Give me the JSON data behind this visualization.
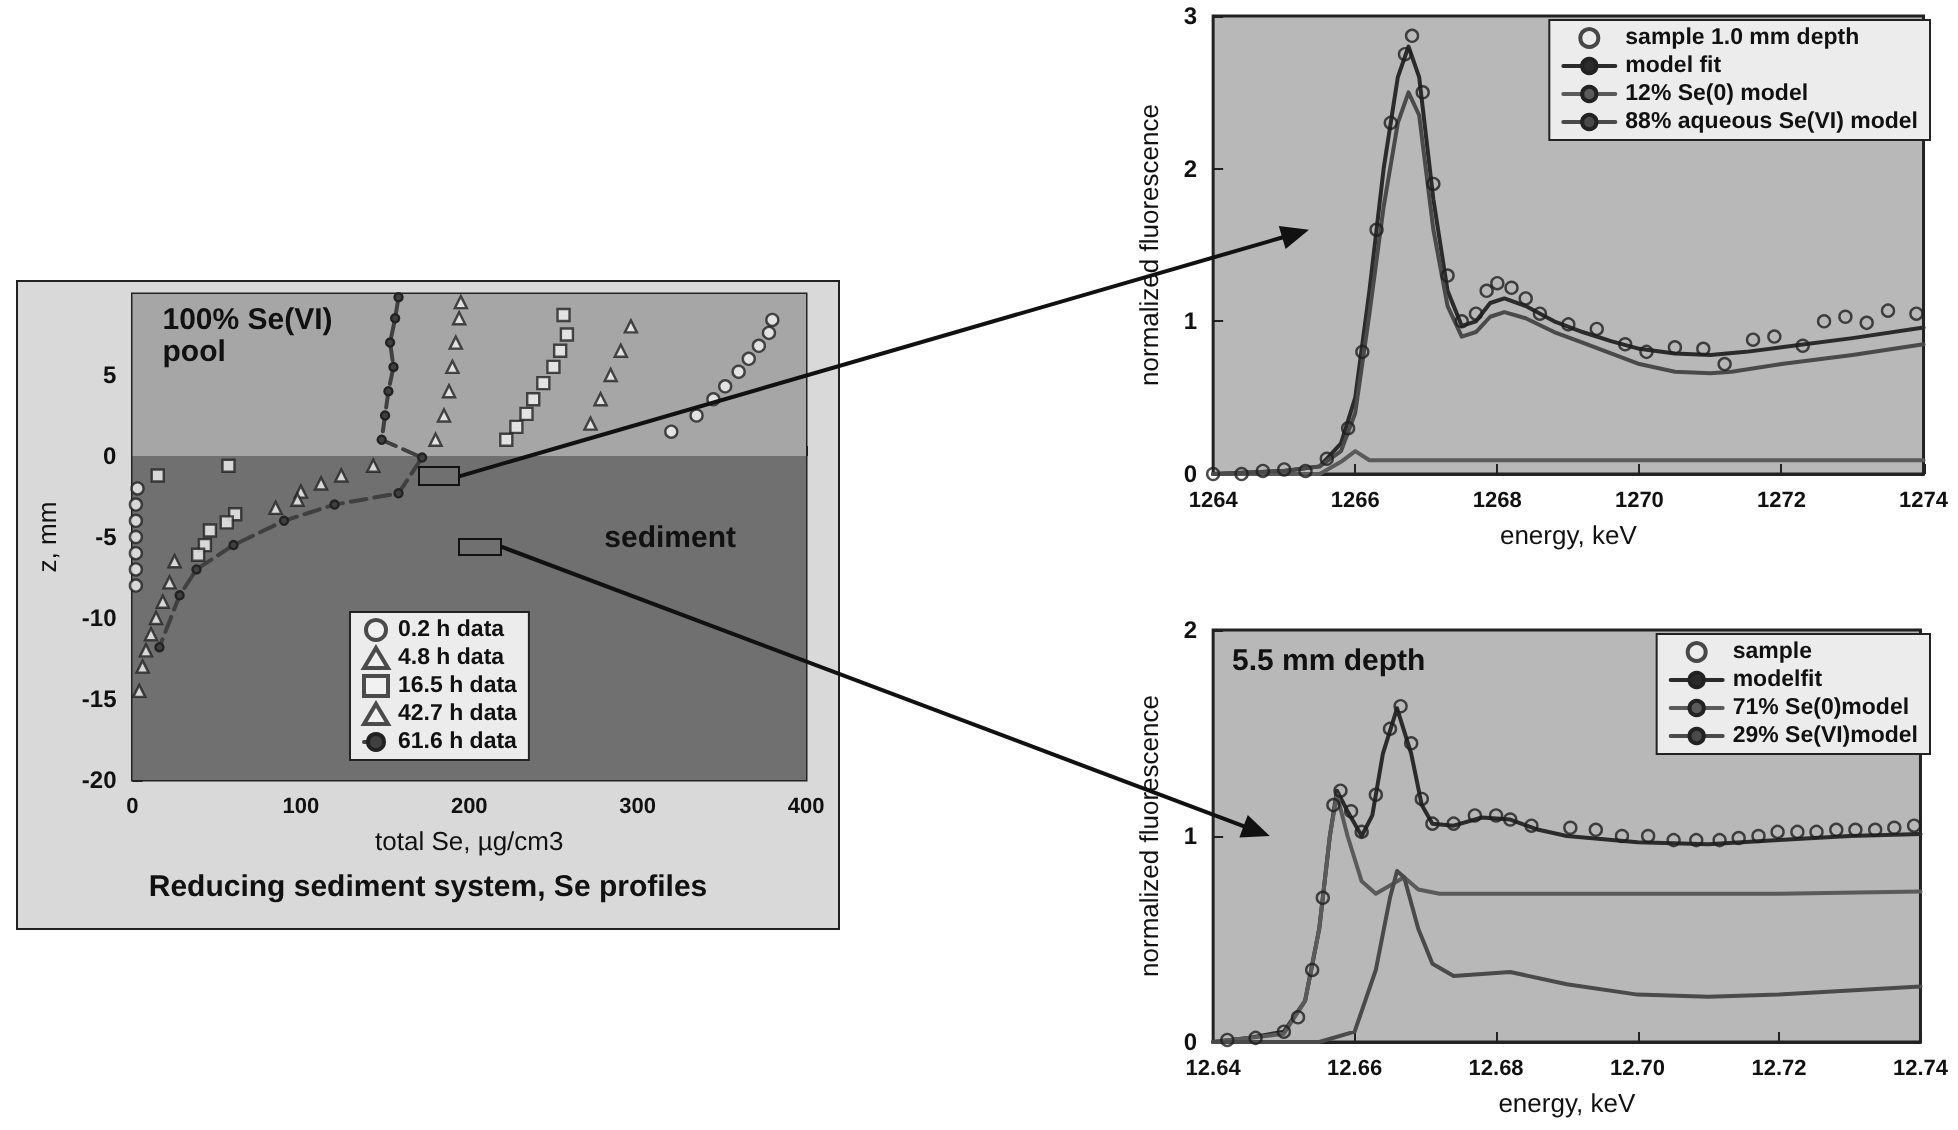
{
  "chart_data": [
    {
      "type": "scatter",
      "title": "Reducing sediment system, Se profiles",
      "xlabel": "total Se, µg/cm3",
      "ylabel": "z, mm",
      "xlim": [
        0,
        400
      ],
      "xticks": [
        0,
        100,
        200,
        300,
        400
      ],
      "ylim": [
        -20,
        10
      ],
      "yticks": [
        -20,
        -15,
        -10,
        -5,
        0,
        5
      ],
      "grid": false,
      "legend": "bottom",
      "bands": [
        {
          "axis": "y",
          "from": 0,
          "to": 10,
          "label": "100% Se(VI)\npool",
          "color": "#a6a6a6"
        },
        {
          "axis": "y",
          "from": -20,
          "to": 0,
          "label": "sediment",
          "color": "#707070"
        }
      ],
      "series": [
        {
          "name": "0.2 h data",
          "marker": "circle",
          "color": "#f2f2f2",
          "x": [
            380,
            378,
            372,
            366,
            360,
            352,
            345,
            335,
            320,
            3,
            2,
            2,
            2,
            2,
            2,
            2
          ],
          "values": [
            8.4,
            7.6,
            6.8,
            6.0,
            5.2,
            4.3,
            3.5,
            2.5,
            1.5,
            -2,
            -3,
            -4,
            -5,
            -6,
            -7,
            -8
          ]
        },
        {
          "name": "4.8 h data",
          "marker": "triangle",
          "color": "#f2f2f2",
          "x": [
            296,
            290,
            284,
            278,
            272,
            25,
            22,
            18,
            14,
            11,
            8,
            6,
            4
          ],
          "values": [
            8,
            6.5,
            5,
            3.5,
            2,
            -6.5,
            -7.8,
            -9,
            -10,
            -11,
            -12,
            -13,
            -14.5
          ]
        },
        {
          "name": "16.5 h data",
          "marker": "square",
          "color": "#f2f2f2",
          "x": [
            256,
            258,
            254,
            250,
            244,
            238,
            234,
            228,
            222,
            57,
            15,
            61,
            56,
            46,
            43,
            39
          ],
          "values": [
            8.7,
            7.5,
            6.5,
            5.5,
            4.5,
            3.5,
            2.6,
            1.8,
            1.0,
            -0.6,
            -1.2,
            -3.6,
            -4.1,
            -4.6,
            -5.5,
            -6.1
          ]
        },
        {
          "name": "42.7 h data",
          "marker": "triangle",
          "color": "#f2f2f2",
          "x": [
            195,
            194,
            192,
            190,
            188,
            185,
            180,
            143,
            124,
            112,
            100,
            98,
            85
          ],
          "values": [
            9.5,
            8.5,
            7,
            5.5,
            4,
            2.5,
            1,
            -0.6,
            -1.2,
            -1.7,
            -2.2,
            -2.7,
            -3.2
          ]
        },
        {
          "name": "61.6 h data",
          "type": "line",
          "line_style": "dashed",
          "marker": "circle",
          "color": "#404040",
          "x": [
            158,
            156,
            153,
            155,
            152,
            150,
            148,
            172,
            158,
            120,
            90,
            60,
            38,
            28,
            16
          ],
          "values": [
            9.8,
            8.5,
            7,
            5.5,
            4,
            2.5,
            1,
            -0.1,
            -2.3,
            -3,
            -4,
            -5.5,
            -7,
            -8.6,
            -11.8
          ]
        }
      ]
    },
    {
      "type": "line",
      "xlabel": "energy, keV",
      "ylabel": "normalized fluorescence",
      "xlim": [
        1264,
        1274
      ],
      "xticks": [
        1264,
        1266,
        1268,
        1270,
        1272,
        1274
      ],
      "ylim": [
        0,
        3
      ],
      "yticks": [
        0,
        1,
        2,
        3
      ],
      "grid": false,
      "legend": "top right",
      "series": [
        {
          "name": "sample 1.0 mm depth",
          "type": "scatter",
          "marker": "circle",
          "color": "#1e1e1e",
          "x": [
            1264.0,
            1264.4,
            1264.7,
            1265.0,
            1265.3,
            1265.6,
            1265.9,
            1266.1,
            1266.3,
            1266.5,
            1266.7,
            1266.8,
            1266.95,
            1267.1,
            1267.3,
            1267.5,
            1267.7,
            1267.85,
            1268.0,
            1268.2,
            1268.4,
            1268.6,
            1269.0,
            1269.4,
            1269.8,
            1270.1,
            1270.5,
            1270.9,
            1271.2,
            1271.6,
            1271.9,
            1272.3,
            1272.6,
            1272.9,
            1273.2,
            1273.5,
            1273.9
          ],
          "values": [
            0.0,
            0.0,
            0.02,
            0.03,
            0.02,
            0.1,
            0.3,
            0.8,
            1.6,
            2.3,
            2.75,
            2.87,
            2.5,
            1.9,
            1.3,
            1.0,
            1.05,
            1.2,
            1.25,
            1.22,
            1.15,
            1.05,
            0.98,
            0.95,
            0.85,
            0.8,
            0.83,
            0.82,
            0.72,
            0.88,
            0.9,
            0.84,
            1.0,
            1.03,
            0.99,
            1.07,
            1.05
          ]
        },
        {
          "name": "model fit",
          "marker": "none",
          "color": "#2b2b2b",
          "x": [
            1264,
            1265,
            1265.5,
            1265.8,
            1266,
            1266.2,
            1266.4,
            1266.6,
            1266.75,
            1266.9,
            1267.1,
            1267.3,
            1267.5,
            1267.7,
            1267.9,
            1268.1,
            1268.4,
            1268.8,
            1269.2,
            1269.6,
            1270,
            1270.5,
            1271,
            1271.5,
            1272,
            1273,
            1274
          ],
          "values": [
            0,
            0.02,
            0.05,
            0.2,
            0.5,
            1.2,
            2.0,
            2.6,
            2.8,
            2.6,
            1.8,
            1.2,
            0.97,
            1.0,
            1.12,
            1.15,
            1.1,
            1.0,
            0.93,
            0.87,
            0.82,
            0.79,
            0.78,
            0.8,
            0.83,
            0.89,
            0.96
          ]
        },
        {
          "name": "12% Se(0) model",
          "marker": "none",
          "color": "#5a5a5a",
          "x": [
            1264,
            1265.5,
            1265.8,
            1266,
            1266.2,
            1274
          ],
          "values": [
            0,
            0,
            0.08,
            0.15,
            0.09,
            0.09
          ]
        },
        {
          "name": "88% aqueous Se(VI) model",
          "marker": "none",
          "color": "#4a4a4a",
          "x": [
            1264,
            1265,
            1265.5,
            1265.8,
            1266,
            1266.2,
            1266.4,
            1266.6,
            1266.75,
            1266.9,
            1267.1,
            1267.3,
            1267.5,
            1267.7,
            1267.9,
            1268.1,
            1268.4,
            1268.8,
            1269.2,
            1269.6,
            1270,
            1270.5,
            1271,
            1271.3,
            1272,
            1273,
            1274
          ],
          "values": [
            0,
            0.02,
            0.05,
            0.15,
            0.4,
            1.05,
            1.75,
            2.3,
            2.5,
            2.35,
            1.6,
            1.1,
            0.9,
            0.93,
            1.03,
            1.06,
            1.02,
            0.93,
            0.86,
            0.79,
            0.72,
            0.67,
            0.66,
            0.67,
            0.72,
            0.78,
            0.85
          ]
        }
      ]
    },
    {
      "type": "line",
      "xlabel": "energy, keV",
      "ylabel": "normalized fluorescence",
      "xlim": [
        12.64,
        12.74
      ],
      "xticks": [
        12.64,
        12.66,
        12.68,
        {
          "value": 12.7,
          "label": "12.70"
        },
        12.72,
        12.74
      ],
      "ylim": [
        0,
        2
      ],
      "yticks": [
        0,
        1,
        2
      ],
      "grid": false,
      "legend": "top right",
      "annotations": [
        "5.5 mm depth"
      ],
      "series": [
        {
          "name": "sample",
          "type": "scatter",
          "marker": "circle",
          "color": "#1e1e1e",
          "x": [
            12.642,
            12.646,
            12.65,
            12.652,
            12.654,
            12.6555,
            12.657,
            12.658,
            12.6595,
            12.661,
            12.663,
            12.665,
            12.6665,
            12.668,
            12.6695,
            12.671,
            12.674,
            12.677,
            12.68,
            12.682,
            12.685,
            12.6905,
            12.6941,
            12.6978,
            12.7015,
            12.7051,
            12.7083,
            12.7116,
            12.7143,
            12.7171,
            12.7198,
            12.7226,
            12.7253,
            12.7281,
            12.7308,
            12.7336,
            12.7363,
            12.7391
          ],
          "values": [
            0.01,
            0.02,
            0.05,
            0.12,
            0.35,
            0.7,
            1.15,
            1.22,
            1.12,
            1.02,
            1.2,
            1.52,
            1.63,
            1.45,
            1.18,
            1.06,
            1.06,
            1.1,
            1.1,
            1.08,
            1.05,
            1.04,
            1.03,
            1.0,
            1.0,
            0.98,
            0.98,
            0.98,
            0.99,
            1.0,
            1.02,
            1.02,
            1.02,
            1.03,
            1.03,
            1.03,
            1.04,
            1.05
          ]
        },
        {
          "name": "modelfit",
          "marker": "none",
          "color": "#2b2b2b",
          "x": [
            12.64,
            12.645,
            12.65,
            12.653,
            12.655,
            12.6565,
            12.6575,
            12.659,
            12.661,
            12.6625,
            12.664,
            12.666,
            12.668,
            12.6695,
            12.671,
            12.674,
            12.678,
            12.682,
            12.686,
            12.69,
            12.7,
            12.71,
            12.72,
            12.73,
            12.74
          ],
          "values": [
            0,
            0.02,
            0.05,
            0.2,
            0.55,
            1.0,
            1.22,
            1.12,
            1.0,
            1.1,
            1.4,
            1.62,
            1.4,
            1.15,
            1.06,
            1.05,
            1.09,
            1.08,
            1.03,
            1.0,
            0.97,
            0.96,
            0.98,
            1.0,
            1.01
          ]
        },
        {
          "name": "71% Se(0)model",
          "marker": "none",
          "color": "#5a5a5a",
          "x": [
            12.64,
            12.65,
            12.653,
            12.655,
            12.6565,
            12.6575,
            12.659,
            12.661,
            12.663,
            12.665,
            12.667,
            12.669,
            12.672,
            12.69,
            12.7,
            12.72,
            12.74
          ],
          "values": [
            0,
            0.04,
            0.2,
            0.55,
            1.0,
            1.2,
            1.0,
            0.78,
            0.72,
            0.76,
            0.8,
            0.74,
            0.72,
            0.72,
            0.72,
            0.72,
            0.73
          ]
        },
        {
          "name": "29% Se(VI)model",
          "marker": "none",
          "color": "#4a4a4a",
          "x": [
            12.64,
            12.655,
            12.66,
            12.663,
            12.665,
            12.666,
            12.667,
            12.669,
            12.671,
            12.674,
            12.678,
            12.682,
            12.69,
            12.7,
            12.71,
            12.72,
            12.74
          ],
          "values": [
            0,
            0,
            0.05,
            0.35,
            0.7,
            0.83,
            0.8,
            0.55,
            0.38,
            0.32,
            0.33,
            0.34,
            0.28,
            0.23,
            0.22,
            0.23,
            0.27
          ]
        }
      ]
    }
  ]
}
